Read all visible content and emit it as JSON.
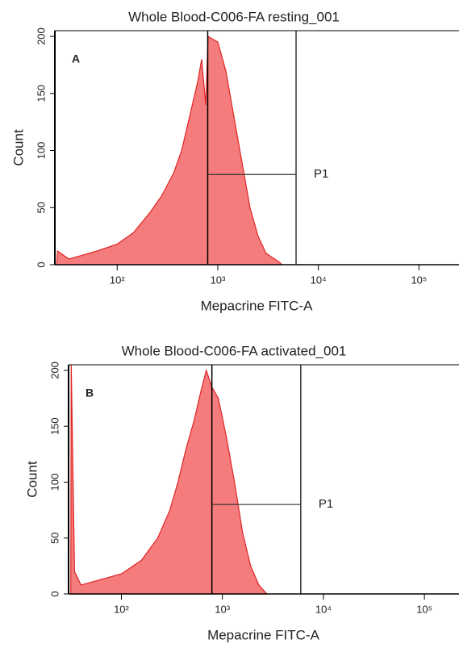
{
  "chart_data": [
    {
      "type": "area",
      "title": "Whole Blood-C006-FA resting_001",
      "panel": "A",
      "x_label": "Mepacrine FITC-A",
      "y_label": "Count",
      "log_x": true,
      "color": "#f47c7c",
      "line_color": "#e02424",
      "x": [
        25,
        25.5,
        33,
        43.7,
        63,
        100,
        145,
        209,
        275,
        363,
        437,
        525,
        631,
        692,
        759,
        802,
        1000,
        1202,
        1445,
        1738,
        2089,
        2512,
        3020,
        3981,
        4365
      ],
      "values": [
        0,
        12,
        5,
        8,
        12,
        18,
        28,
        45,
        60,
        80,
        100,
        130,
        160,
        180,
        140,
        200,
        195,
        170,
        130,
        90,
        50,
        25,
        10,
        3,
        0
      ],
      "xlim": [
        24,
        250000
      ],
      "ylim": [
        0,
        205
      ],
      "xticks": [
        {
          "value": 100,
          "label": "10²"
        },
        {
          "value": 1000,
          "label": "10³"
        },
        {
          "value": 10000,
          "label": "10⁴"
        },
        {
          "value": 100000,
          "label": "10⁵"
        }
      ],
      "yticks": [
        0,
        50,
        100,
        150,
        200
      ],
      "gate": {
        "label": "P1",
        "x": [
          794,
          6000
        ],
        "y": 79
      }
    },
    {
      "type": "area",
      "title": "Whole Blood-C006-FA activated_001",
      "panel": "B",
      "x_label": "Mepacrine FITC-A",
      "y_label": "Count",
      "log_x": true,
      "color": "#f47c7c",
      "line_color": "#e02424",
      "x": [
        31.5,
        31.9,
        34.4,
        39.8,
        57.5,
        100,
        158,
        229,
        302,
        363,
        437,
        525,
        608,
        692,
        787,
        912,
        1096,
        1318,
        1585,
        1905,
        2291,
        2754
      ],
      "values": [
        0,
        205,
        20,
        8,
        12,
        18,
        30,
        50,
        75,
        100,
        130,
        155,
        180,
        200,
        185,
        175,
        140,
        100,
        55,
        25,
        8,
        0
      ],
      "xlim": [
        30,
        220000
      ],
      "ylim": [
        0,
        205
      ],
      "xticks": [
        {
          "value": 100,
          "label": "10²"
        },
        {
          "value": 1000,
          "label": "10³"
        },
        {
          "value": 10000,
          "label": "10⁴"
        },
        {
          "value": 100000,
          "label": "10⁵"
        }
      ],
      "yticks": [
        0,
        50,
        100,
        150,
        200
      ],
      "gate": {
        "label": "P1",
        "x": [
          787,
          5970
        ],
        "y": 80
      }
    }
  ]
}
